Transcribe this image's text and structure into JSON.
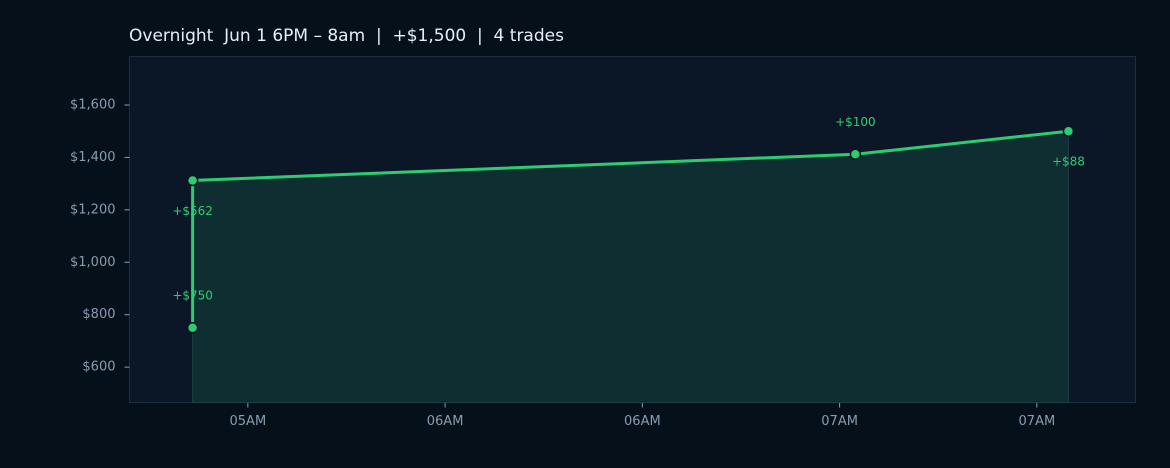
{
  "chart_data": {
    "type": "line",
    "title": "Overnight  Jun 1 6PM – 8am  |  +$1,500  |  4 trades",
    "x": [
      5.61,
      5.61,
      7.29,
      7.83
    ],
    "series": [
      {
        "color": "#2ecc71",
        "values": [
          750,
          1312,
          1412,
          1500
        ]
      }
    ],
    "annotations": [
      "+$750",
      "+$562",
      "+$100",
      "+$88"
    ],
    "xlim": [
      5.45,
      8.0
    ],
    "xticks": [
      {
        "value": 5.75,
        "label": "05AM"
      },
      {
        "value": 6.25,
        "label": "06AM"
      },
      {
        "value": 6.75,
        "label": "06AM"
      },
      {
        "value": 7.25,
        "label": "07AM"
      },
      {
        "value": 7.75,
        "label": "07AM"
      }
    ],
    "ylim": [
      465,
      1785
    ],
    "yticks": [
      {
        "value": 600,
        "label": "$600"
      },
      {
        "value": 800,
        "label": "$800"
      },
      {
        "value": 1000,
        "label": "$1,000"
      },
      {
        "value": 1200,
        "label": "$1,200"
      },
      {
        "value": 1400,
        "label": "$1,400"
      },
      {
        "value": 1600,
        "label": "$1,600"
      }
    ]
  }
}
